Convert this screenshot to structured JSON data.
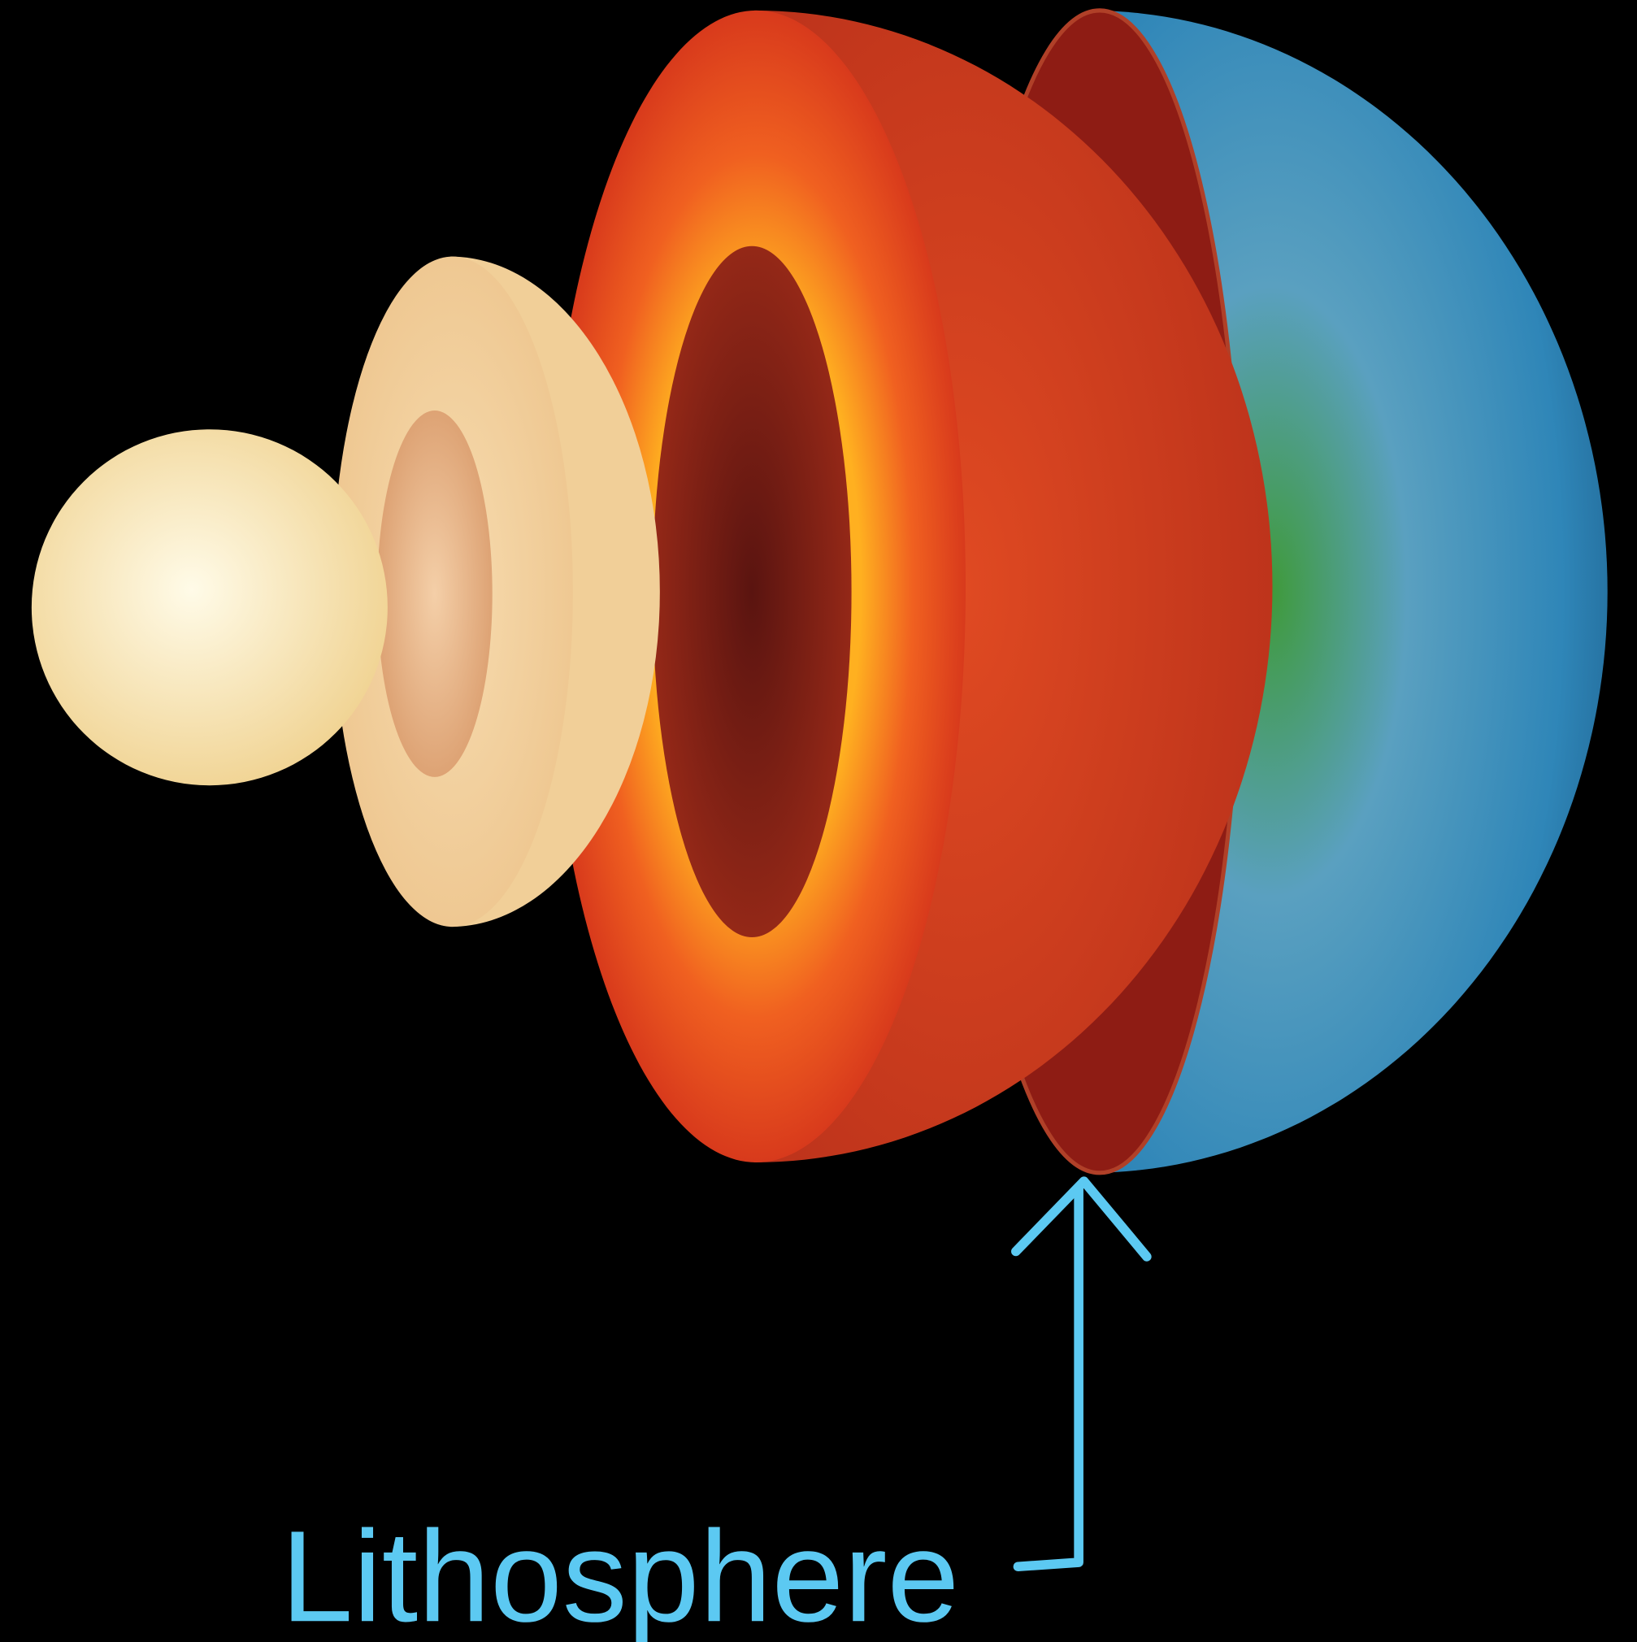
{
  "label": "Lithosphere"
}
